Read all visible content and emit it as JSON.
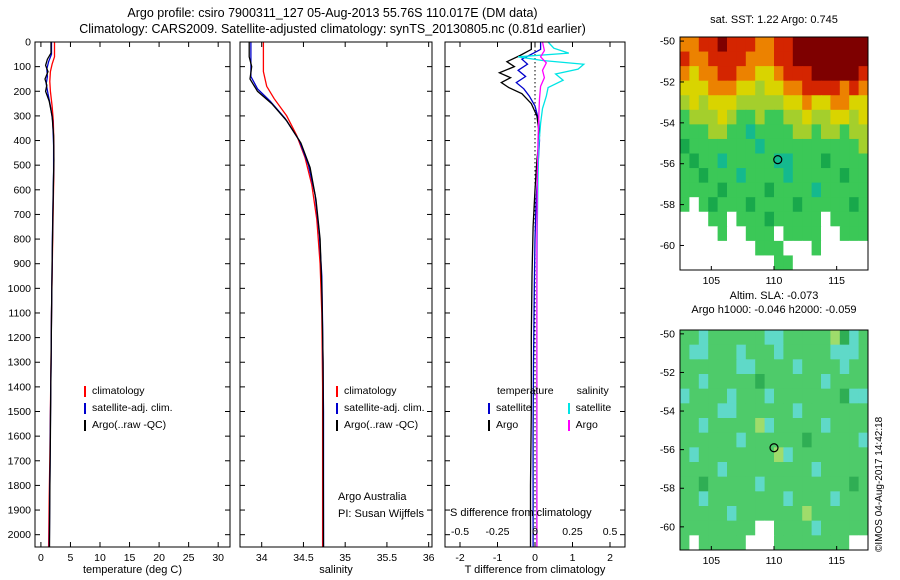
{
  "title": {
    "line1": "Argo profile: csiro 7900311_127 05-Aug-2013 55.76S 110.017E (DM data)",
    "line2": "Climatology: CARS2009. Satellite-adjusted climatology: synTS_20130805.nc (0.81d earlier)"
  },
  "watermark": "©IMOS 04-Aug-2017 14:42:18",
  "colors": {
    "climatology": "#ff0000",
    "satellite_clim": "#0000cc",
    "argo": "#000000",
    "sal_satellite": "#00e5e5",
    "sal_argo": "#ff00ff"
  },
  "chart_data": [
    {
      "type": "line",
      "xlabel": "temperature (deg C)",
      "xlim": [
        -1,
        32
      ],
      "ylim": [
        0,
        2050
      ],
      "xticks": [
        0,
        5,
        10,
        15,
        20,
        25,
        30
      ],
      "yticks": [
        0,
        100,
        200,
        300,
        400,
        500,
        600,
        700,
        800,
        900,
        1000,
        1100,
        1200,
        1300,
        1400,
        1500,
        1600,
        1700,
        1800,
        1900,
        2000
      ],
      "legend": [
        {
          "label": "climatology",
          "color": "#ff0000"
        },
        {
          "label": "satellite-adj. clim.",
          "color": "#0000cc"
        },
        {
          "label": "Argo(..raw -QC)",
          "color": "#000000"
        }
      ],
      "series": [
        {
          "name": "climatology",
          "color": "#ff0000",
          "points": [
            [
              2.3,
              0
            ],
            [
              2.3,
              60
            ],
            [
              1.9,
              90
            ],
            [
              1.6,
              120
            ],
            [
              1.5,
              160
            ],
            [
              1.6,
              200
            ],
            [
              1.9,
              260
            ],
            [
              2.1,
              320
            ],
            [
              2.2,
              420
            ],
            [
              2.2,
              520
            ],
            [
              2.1,
              650
            ],
            [
              2.0,
              800
            ],
            [
              1.9,
              950
            ],
            [
              1.8,
              1100
            ],
            [
              1.7,
              1300
            ],
            [
              1.6,
              1500
            ],
            [
              1.5,
              1700
            ],
            [
              1.4,
              1850
            ],
            [
              1.3,
              2050
            ]
          ]
        },
        {
          "name": "satellite-adj-clim",
          "color": "#0000cc",
          "points": [
            [
              1.8,
              0
            ],
            [
              1.8,
              50
            ],
            [
              1.3,
              80
            ],
            [
              1.0,
              110
            ],
            [
              1.1,
              140
            ],
            [
              0.9,
              170
            ],
            [
              1.2,
              210
            ],
            [
              1.6,
              260
            ],
            [
              2.0,
              320
            ],
            [
              2.15,
              420
            ],
            [
              2.15,
              520
            ],
            [
              2.05,
              650
            ],
            [
              1.95,
              800
            ],
            [
              1.88,
              950
            ],
            [
              1.8,
              1100
            ],
            [
              1.72,
              1300
            ],
            [
              1.62,
              1500
            ],
            [
              1.55,
              1700
            ],
            [
              1.48,
              1850
            ],
            [
              1.42,
              2050
            ]
          ]
        },
        {
          "name": "argo",
          "color": "#000000",
          "points": [
            [
              1.7,
              0
            ],
            [
              1.7,
              45
            ],
            [
              1.1,
              70
            ],
            [
              0.8,
              95
            ],
            [
              1.2,
              120
            ],
            [
              0.7,
              150
            ],
            [
              1.0,
              175
            ],
            [
              0.8,
              200
            ],
            [
              1.4,
              240
            ],
            [
              1.9,
              300
            ],
            [
              2.15,
              380
            ],
            [
              2.2,
              480
            ],
            [
              2.1,
              600
            ],
            [
              2.0,
              750
            ],
            [
              1.9,
              900
            ],
            [
              1.83,
              1050
            ],
            [
              1.76,
              1200
            ],
            [
              1.68,
              1400
            ],
            [
              1.6,
              1600
            ],
            [
              1.52,
              1800
            ],
            [
              1.45,
              2050
            ]
          ]
        }
      ]
    },
    {
      "type": "line",
      "xlabel": "salinity",
      "xlim": [
        33.74,
        36.04
      ],
      "ylim": [
        0,
        2050
      ],
      "xticks": [
        34,
        34.5,
        35,
        35.5,
        36
      ],
      "yticks": [
        0,
        100,
        200,
        300,
        400,
        500,
        600,
        700,
        800,
        900,
        1000,
        1100,
        1200,
        1300,
        1400,
        1500,
        1600,
        1700,
        1800,
        1900,
        2000
      ],
      "legend": [
        {
          "label": "climatology",
          "color": "#ff0000"
        },
        {
          "label": "satellite-adj. clim.",
          "color": "#0000cc"
        },
        {
          "label": "Argo(..raw -QC)",
          "color": "#000000"
        }
      ],
      "annotations": [
        "Argo Australia",
        "PI: Susan Wijffels"
      ],
      "series": [
        {
          "name": "climatology",
          "color": "#ff0000",
          "points": [
            [
              34.02,
              0
            ],
            [
              34.02,
              120
            ],
            [
              34.06,
              180
            ],
            [
              34.15,
              230
            ],
            [
              34.3,
              300
            ],
            [
              34.42,
              380
            ],
            [
              34.52,
              470
            ],
            [
              34.6,
              580
            ],
            [
              34.66,
              720
            ],
            [
              34.7,
              900
            ],
            [
              34.72,
              1100
            ],
            [
              34.73,
              1400
            ],
            [
              34.73,
              2050
            ]
          ]
        },
        {
          "name": "satellite-adj-clim",
          "color": "#0000cc",
          "points": [
            [
              33.87,
              0
            ],
            [
              33.87,
              140
            ],
            [
              33.95,
              190
            ],
            [
              34.1,
              240
            ],
            [
              34.28,
              310
            ],
            [
              34.45,
              400
            ],
            [
              34.56,
              500
            ],
            [
              34.64,
              620
            ],
            [
              34.69,
              780
            ],
            [
              34.72,
              950
            ],
            [
              34.73,
              1150
            ],
            [
              34.74,
              1500
            ],
            [
              34.74,
              2050
            ]
          ]
        },
        {
          "name": "argo",
          "color": "#000000",
          "points": [
            [
              33.85,
              0
            ],
            [
              33.85,
              60
            ],
            [
              33.88,
              100
            ],
            [
              33.86,
              150
            ],
            [
              33.95,
              200
            ],
            [
              34.12,
              250
            ],
            [
              34.3,
              320
            ],
            [
              34.47,
              410
            ],
            [
              34.58,
              510
            ],
            [
              34.65,
              640
            ],
            [
              34.7,
              800
            ],
            [
              34.72,
              1000
            ],
            [
              34.735,
              1300
            ],
            [
              34.74,
              2050
            ]
          ]
        }
      ]
    },
    {
      "type": "line",
      "xlabel": "T difference from climatology",
      "xlim": [
        -2.4,
        2.4
      ],
      "ylim": [
        0,
        2050
      ],
      "xticks": [
        -2,
        -1,
        0,
        1,
        2
      ],
      "yticks": [
        0,
        100,
        200,
        300,
        400,
        500,
        600,
        700,
        800,
        900,
        1000,
        1100,
        1200,
        1300,
        1400,
        1500,
        1600,
        1700,
        1800,
        1900,
        2000
      ],
      "ref_x": 0,
      "secondary": {
        "label": "S difference from climatology",
        "ticks": [
          {
            "at": -2,
            "label": "-0.5"
          },
          {
            "at": -1,
            "label": "-0.25"
          },
          {
            "at": 0,
            "label": "0"
          },
          {
            "at": 1,
            "label": "0.25"
          },
          {
            "at": 2,
            "label": "0.5"
          }
        ]
      },
      "legend_columns": [
        {
          "header": "temperature",
          "items": [
            {
              "label": "satellite",
              "color": "#0000cc"
            },
            {
              "label": "Argo",
              "color": "#000000"
            }
          ]
        },
        {
          "header": "salinity",
          "items": [
            {
              "label": "satellite",
              "color": "#00e5e5"
            },
            {
              "label": "Argo",
              "color": "#ff00ff"
            }
          ]
        }
      ],
      "series": [
        {
          "name": "t-diff-satellite",
          "color": "#0000cc",
          "points": [
            [
              0.15,
              0
            ],
            [
              0.15,
              30
            ],
            [
              -0.1,
              50
            ],
            [
              -0.35,
              70
            ],
            [
              -0.2,
              90
            ],
            [
              -0.45,
              115
            ],
            [
              -0.25,
              140
            ],
            [
              -0.5,
              165
            ],
            [
              -0.3,
              190
            ],
            [
              -0.15,
              220
            ],
            [
              0.0,
              260
            ],
            [
              0.1,
              320
            ],
            [
              0.12,
              400
            ],
            [
              0.08,
              500
            ],
            [
              0.03,
              650
            ],
            [
              0.0,
              800
            ],
            [
              -0.02,
              1000
            ],
            [
              -0.04,
              1300
            ],
            [
              -0.05,
              1600
            ],
            [
              -0.05,
              2050
            ]
          ]
        },
        {
          "name": "t-diff-argo",
          "color": "#000000",
          "points": [
            [
              -0.1,
              0
            ],
            [
              -0.1,
              30
            ],
            [
              -0.4,
              55
            ],
            [
              -0.75,
              80
            ],
            [
              -0.55,
              100
            ],
            [
              -0.95,
              125
            ],
            [
              -0.65,
              145
            ],
            [
              -0.9,
              165
            ],
            [
              -0.7,
              185
            ],
            [
              -0.35,
              210
            ],
            [
              -0.1,
              250
            ],
            [
              0.05,
              300
            ],
            [
              0.12,
              380
            ],
            [
              0.05,
              480
            ],
            [
              0.0,
              600
            ],
            [
              -0.05,
              750
            ],
            [
              -0.08,
              950
            ],
            [
              -0.1,
              1200
            ],
            [
              -0.1,
              1500
            ],
            [
              -0.12,
              1800
            ],
            [
              -0.12,
              2050
            ]
          ]
        },
        {
          "name": "s-diff-satellite",
          "color": "#00e5e5",
          "points": [
            [
              0.35,
              0
            ],
            [
              0.5,
              25
            ],
            [
              0.9,
              45
            ],
            [
              -0.45,
              60
            ],
            [
              0.2,
              75
            ],
            [
              1.3,
              90
            ],
            [
              1.15,
              110
            ],
            [
              0.55,
              130
            ],
            [
              0.75,
              155
            ],
            [
              0.35,
              185
            ],
            [
              0.3,
              220
            ],
            [
              0.2,
              270
            ],
            [
              0.15,
              330
            ],
            [
              0.1,
              420
            ],
            [
              0.08,
              550
            ],
            [
              0.06,
              750
            ],
            [
              0.05,
              1000
            ],
            [
              0.05,
              1400
            ],
            [
              0.05,
              2050
            ]
          ]
        },
        {
          "name": "s-diff-argo",
          "color": "#ff00ff",
          "points": [
            [
              0.2,
              0
            ],
            [
              0.25,
              35
            ],
            [
              0.15,
              60
            ],
            [
              0.3,
              85
            ],
            [
              0.2,
              115
            ],
            [
              0.25,
              145
            ],
            [
              0.15,
              180
            ],
            [
              0.12,
              230
            ],
            [
              0.1,
              300
            ],
            [
              0.08,
              400
            ],
            [
              0.06,
              550
            ],
            [
              0.05,
              800
            ],
            [
              0.05,
              1200
            ],
            [
              0.05,
              2050
            ]
          ]
        }
      ]
    },
    {
      "type": "heatmap",
      "title": "sat. SST: 1.22 Argo: 0.745",
      "xlim": [
        102.5,
        117.5
      ],
      "ylim": [
        -49.8,
        -61.2
      ],
      "xticks": [
        105,
        110,
        115
      ],
      "yticks": [
        -50,
        -52,
        -54,
        -56,
        -58,
        -60
      ],
      "marker": {
        "x": 110.3,
        "y": -55.8
      },
      "palette": {
        "M": "#7e0000",
        "R": "#d42500",
        "O": "#ec8200",
        "Y": "#d9d400",
        "L": "#a4cf2c",
        "G": "#3bc857",
        "D": "#18a84b",
        "T": "#14b98e",
        "C": "#4fd9c4",
        "W": "#ffffff"
      },
      "grid": [
        "OORRMRRROORRMMMMMMMM",
        "ROORRRROOORRMMMMMMMM",
        "OYOORROOYYORRRMMMMMR",
        "YYYOOOYYLYYOORRRRORO",
        "LYLYYYLLLLLYYOYYOOYY",
        "GLLLYLGGLGGLLYLLYYLY",
        "GGGLLGGTGGGGLLGLLGLL",
        "DGGGGGGGTGGGGGGGGGGL",
        "GDGGTGGGGGTTGGGDGGGG",
        "GGDGGGTGGGGTGGGGGDGG",
        "GGGGDGGGGDGGGGTGGGGG",
        "GWGDGGGDGGGGDGGGGGDG",
        "WWWGGWGGGDGGGGGWGGGG",
        "WWWWGWWGGGWGGGGWWGGG",
        "WWWWWWWWGGGWWWGWWWWW",
        "WWWWWWWWWWGGWWWWWWWW"
      ]
    },
    {
      "type": "heatmap",
      "title_line1": "Altim. SLA: -0.073",
      "title_line2": "Argo h1000: -0.046 h2000: -0.059",
      "xlim": [
        102.5,
        117.5
      ],
      "ylim": [
        -49.8,
        -61.2
      ],
      "xticks": [
        105,
        110,
        115
      ],
      "yticks": [
        -50,
        -52,
        -54,
        -56,
        -58,
        -60
      ],
      "marker": {
        "x": 110.0,
        "y": -55.9
      },
      "palette": {
        "g": "#4ecb6a",
        "c": "#5fd9c8",
        "d": "#2fae54",
        "y": "#9fdc6b",
        "w": "#ffffff"
      },
      "grid": [
        "ggcggggggccgggggydcg",
        "gccgggcgggcgggggcccg",
        "ggggggccggggcggggcgg",
        "ggcgggggdggggggcgggg",
        "cggggcgggcgggggggdcc",
        "ggggccggggggcggggggg",
        "ggcgggggycgggggcgggg",
        "ggggggcggggggdgggggc",
        "gcggggggggycgggggggg",
        "ggggcgggggggggcggggg",
        "ggdgggggcgggggggggdg",
        "ggcggggggggcggggcggg",
        "gggggcgggggggygggggg",
        "ggggggggwwggggcggggg",
        "gwgggggwwwggggggggww"
      ]
    }
  ]
}
